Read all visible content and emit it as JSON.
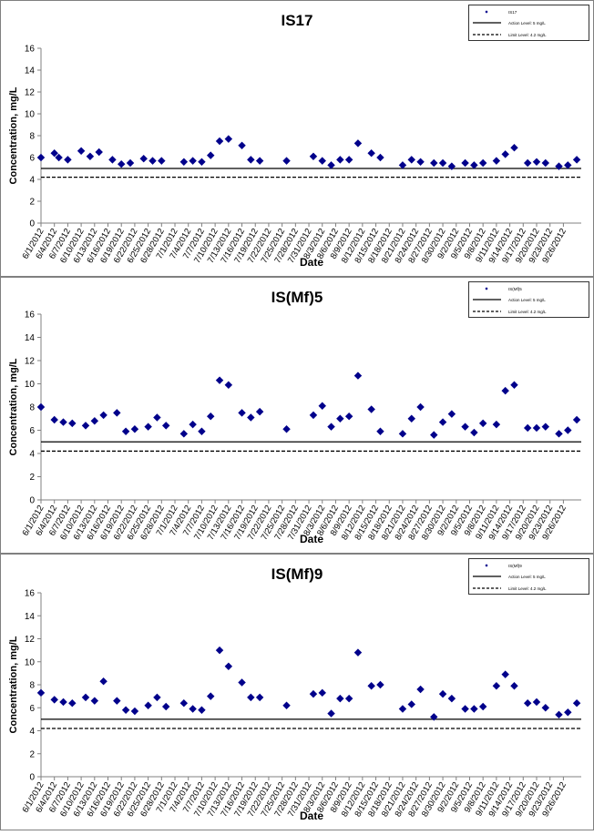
{
  "x_labels": [
    "6/1/2012",
    "6/4/2012",
    "6/7/2012",
    "6/10/2012",
    "6/13/2012",
    "6/16/2012",
    "6/19/2012",
    "6/22/2012",
    "6/25/2012",
    "6/28/2012",
    "7/1/2012",
    "7/4/2012",
    "7/7/2012",
    "7/10/2012",
    "7/13/2012",
    "7/16/2012",
    "7/19/2012",
    "7/22/2012",
    "7/25/2012",
    "7/28/2012",
    "7/31/2012",
    "8/3/2012",
    "8/6/2012",
    "8/9/2012",
    "8/12/2012",
    "8/15/2012",
    "8/18/2012",
    "8/21/2012",
    "8/24/2012",
    "8/27/2012",
    "8/30/2012",
    "9/2/2012",
    "9/5/2012",
    "9/8/2012",
    "9/11/2012",
    "9/14/2012",
    "9/17/2012",
    "9/20/2012",
    "9/23/2012",
    "9/26/2012"
  ],
  "colors": {
    "marker": "#00008B",
    "axis": "#808080",
    "line": "#000000"
  },
  "chart_data": [
    {
      "type": "scatter",
      "title": "IS17",
      "xlabel": "Date",
      "ylabel": "Concentration, mg/L",
      "ylim": [
        0,
        16
      ],
      "yticks": [
        0,
        2,
        4,
        6,
        8,
        10,
        12,
        14,
        16
      ],
      "legend_position": "top-right",
      "legend": {
        "series": "IS17",
        "action": "Action Level: 5 mg/L",
        "limit": "Limit Level: 4.2 mg/L"
      },
      "reference_lines": [
        {
          "y": 5.0,
          "style": "solid"
        },
        {
          "y": 4.2,
          "style": "dashed"
        }
      ],
      "series": [
        {
          "name": "IS17",
          "points": [
            {
              "x": "6/1/2012",
              "y": 6.0
            },
            {
              "x": "6/4/2012",
              "y": 6.4
            },
            {
              "x": "6/5/2012",
              "y": 6.0
            },
            {
              "x": "6/7/2012",
              "y": 5.8
            },
            {
              "x": "6/10/2012",
              "y": 6.6
            },
            {
              "x": "6/12/2012",
              "y": 6.1
            },
            {
              "x": "6/14/2012",
              "y": 6.5
            },
            {
              "x": "6/17/2012",
              "y": 5.8
            },
            {
              "x": "6/19/2012",
              "y": 5.4
            },
            {
              "x": "6/21/2012",
              "y": 5.5
            },
            {
              "x": "6/24/2012",
              "y": 5.9
            },
            {
              "x": "6/26/2012",
              "y": 5.7
            },
            {
              "x": "6/28/2012",
              "y": 5.7
            },
            {
              "x": "7/3/2012",
              "y": 5.6
            },
            {
              "x": "7/5/2012",
              "y": 5.7
            },
            {
              "x": "7/7/2012",
              "y": 5.6
            },
            {
              "x": "7/9/2012",
              "y": 6.2
            },
            {
              "x": "7/11/2012",
              "y": 7.5
            },
            {
              "x": "7/13/2012",
              "y": 7.7
            },
            {
              "x": "7/16/2012",
              "y": 7.1
            },
            {
              "x": "7/18/2012",
              "y": 5.8
            },
            {
              "x": "7/20/2012",
              "y": 5.7
            },
            {
              "x": "7/26/2012",
              "y": 5.7
            },
            {
              "x": "8/1/2012",
              "y": 6.1
            },
            {
              "x": "8/3/2012",
              "y": 5.7
            },
            {
              "x": "8/5/2012",
              "y": 5.3
            },
            {
              "x": "8/7/2012",
              "y": 5.8
            },
            {
              "x": "8/9/2012",
              "y": 5.8
            },
            {
              "x": "8/11/2012",
              "y": 7.3
            },
            {
              "x": "8/14/2012",
              "y": 6.4
            },
            {
              "x": "8/16/2012",
              "y": 6.0
            },
            {
              "x": "8/21/2012",
              "y": 5.3
            },
            {
              "x": "8/23/2012",
              "y": 5.8
            },
            {
              "x": "8/25/2012",
              "y": 5.6
            },
            {
              "x": "8/28/2012",
              "y": 5.5
            },
            {
              "x": "8/30/2012",
              "y": 5.5
            },
            {
              "x": "9/1/2012",
              "y": 5.2
            },
            {
              "x": "9/4/2012",
              "y": 5.5
            },
            {
              "x": "9/6/2012",
              "y": 5.3
            },
            {
              "x": "9/8/2012",
              "y": 5.5
            },
            {
              "x": "9/11/2012",
              "y": 5.7
            },
            {
              "x": "9/13/2012",
              "y": 6.3
            },
            {
              "x": "9/15/2012",
              "y": 6.9
            },
            {
              "x": "9/18/2012",
              "y": 5.5
            },
            {
              "x": "9/20/2012",
              "y": 5.6
            },
            {
              "x": "9/22/2012",
              "y": 5.5
            },
            {
              "x": "9/25/2012",
              "y": 5.2
            },
            {
              "x": "9/27/2012",
              "y": 5.3
            },
            {
              "x": "9/29/2012",
              "y": 5.8
            }
          ]
        }
      ]
    },
    {
      "type": "scatter",
      "title": "IS(Mf)5",
      "xlabel": "Date",
      "ylabel": "Concentration, mg/L",
      "ylim": [
        0,
        16
      ],
      "yticks": [
        0,
        2,
        4,
        6,
        8,
        10,
        12,
        14,
        16
      ],
      "legend_position": "top-right",
      "legend": {
        "series": "IS(Mf)5",
        "action": "Action Level: 5 mg/L",
        "limit": "Limit Level: 4.2 mg/L"
      },
      "reference_lines": [
        {
          "y": 5.0,
          "style": "solid"
        },
        {
          "y": 4.2,
          "style": "dashed"
        }
      ],
      "series": [
        {
          "name": "IS(Mf)5",
          "points": [
            {
              "x": "6/1/2012",
              "y": 8.0
            },
            {
              "x": "6/4/2012",
              "y": 6.9
            },
            {
              "x": "6/6/2012",
              "y": 6.7
            },
            {
              "x": "6/8/2012",
              "y": 6.6
            },
            {
              "x": "6/11/2012",
              "y": 6.4
            },
            {
              "x": "6/13/2012",
              "y": 6.8
            },
            {
              "x": "6/15/2012",
              "y": 7.3
            },
            {
              "x": "6/18/2012",
              "y": 7.5
            },
            {
              "x": "6/20/2012",
              "y": 5.9
            },
            {
              "x": "6/22/2012",
              "y": 6.1
            },
            {
              "x": "6/25/2012",
              "y": 6.3
            },
            {
              "x": "6/27/2012",
              "y": 7.1
            },
            {
              "x": "6/29/2012",
              "y": 6.4
            },
            {
              "x": "7/3/2012",
              "y": 5.7
            },
            {
              "x": "7/5/2012",
              "y": 6.5
            },
            {
              "x": "7/7/2012",
              "y": 5.9
            },
            {
              "x": "7/9/2012",
              "y": 7.2
            },
            {
              "x": "7/11/2012",
              "y": 10.3
            },
            {
              "x": "7/13/2012",
              "y": 9.9
            },
            {
              "x": "7/16/2012",
              "y": 7.5
            },
            {
              "x": "7/18/2012",
              "y": 7.1
            },
            {
              "x": "7/20/2012",
              "y": 7.6
            },
            {
              "x": "7/26/2012",
              "y": 6.1
            },
            {
              "x": "8/1/2012",
              "y": 7.3
            },
            {
              "x": "8/3/2012",
              "y": 8.1
            },
            {
              "x": "8/5/2012",
              "y": 6.3
            },
            {
              "x": "8/7/2012",
              "y": 7.0
            },
            {
              "x": "8/9/2012",
              "y": 7.2
            },
            {
              "x": "8/11/2012",
              "y": 10.7
            },
            {
              "x": "8/14/2012",
              "y": 7.8
            },
            {
              "x": "8/16/2012",
              "y": 5.9
            },
            {
              "x": "8/21/2012",
              "y": 5.7
            },
            {
              "x": "8/23/2012",
              "y": 7.0
            },
            {
              "x": "8/25/2012",
              "y": 8.0
            },
            {
              "x": "8/28/2012",
              "y": 5.6
            },
            {
              "x": "8/30/2012",
              "y": 6.7
            },
            {
              "x": "9/1/2012",
              "y": 7.4
            },
            {
              "x": "9/4/2012",
              "y": 6.3
            },
            {
              "x": "9/6/2012",
              "y": 5.8
            },
            {
              "x": "9/8/2012",
              "y": 6.6
            },
            {
              "x": "9/11/2012",
              "y": 6.5
            },
            {
              "x": "9/13/2012",
              "y": 9.4
            },
            {
              "x": "9/15/2012",
              "y": 9.9
            },
            {
              "x": "9/18/2012",
              "y": 6.2
            },
            {
              "x": "9/20/2012",
              "y": 6.2
            },
            {
              "x": "9/22/2012",
              "y": 6.3
            },
            {
              "x": "9/25/2012",
              "y": 5.7
            },
            {
              "x": "9/27/2012",
              "y": 6.0
            },
            {
              "x": "9/29/2012",
              "y": 6.9
            }
          ]
        }
      ]
    },
    {
      "type": "scatter",
      "title": "IS(Mf)9",
      "xlabel": "Date",
      "ylabel": "Concentration, mg/L",
      "ylim": [
        0,
        16
      ],
      "yticks": [
        0,
        2,
        4,
        6,
        8,
        10,
        12,
        14,
        16
      ],
      "legend_position": "top-right",
      "legend": {
        "series": "IS(Mf)9",
        "action": "Action Level: 5 mg/L",
        "limit": "Limit Level: 4.2 mg/L"
      },
      "reference_lines": [
        {
          "y": 5.0,
          "style": "solid"
        },
        {
          "y": 4.2,
          "style": "dashed"
        }
      ],
      "series": [
        {
          "name": "IS(Mf)9",
          "points": [
            {
              "x": "6/1/2012",
              "y": 7.3
            },
            {
              "x": "6/4/2012",
              "y": 6.7
            },
            {
              "x": "6/6/2012",
              "y": 6.5
            },
            {
              "x": "6/8/2012",
              "y": 6.4
            },
            {
              "x": "6/11/2012",
              "y": 6.9
            },
            {
              "x": "6/13/2012",
              "y": 6.6
            },
            {
              "x": "6/15/2012",
              "y": 8.3
            },
            {
              "x": "6/18/2012",
              "y": 6.6
            },
            {
              "x": "6/20/2012",
              "y": 5.8
            },
            {
              "x": "6/22/2012",
              "y": 5.7
            },
            {
              "x": "6/25/2012",
              "y": 6.2
            },
            {
              "x": "6/27/2012",
              "y": 6.9
            },
            {
              "x": "6/29/2012",
              "y": 6.1
            },
            {
              "x": "7/3/2012",
              "y": 6.4
            },
            {
              "x": "7/5/2012",
              "y": 5.9
            },
            {
              "x": "7/7/2012",
              "y": 5.8
            },
            {
              "x": "7/9/2012",
              "y": 7.0
            },
            {
              "x": "7/11/2012",
              "y": 11.0
            },
            {
              "x": "7/13/2012",
              "y": 9.6
            },
            {
              "x": "7/16/2012",
              "y": 8.2
            },
            {
              "x": "7/18/2012",
              "y": 6.9
            },
            {
              "x": "7/20/2012",
              "y": 6.9
            },
            {
              "x": "7/26/2012",
              "y": 6.2
            },
            {
              "x": "8/1/2012",
              "y": 7.2
            },
            {
              "x": "8/3/2012",
              "y": 7.3
            },
            {
              "x": "8/5/2012",
              "y": 5.5
            },
            {
              "x": "8/7/2012",
              "y": 6.8
            },
            {
              "x": "8/9/2012",
              "y": 6.8
            },
            {
              "x": "8/11/2012",
              "y": 10.8
            },
            {
              "x": "8/14/2012",
              "y": 7.9
            },
            {
              "x": "8/16/2012",
              "y": 8.0
            },
            {
              "x": "8/21/2012",
              "y": 5.9
            },
            {
              "x": "8/23/2012",
              "y": 6.3
            },
            {
              "x": "8/25/2012",
              "y": 7.6
            },
            {
              "x": "8/28/2012",
              "y": 5.2
            },
            {
              "x": "8/30/2012",
              "y": 7.2
            },
            {
              "x": "9/1/2012",
              "y": 6.8
            },
            {
              "x": "9/4/2012",
              "y": 5.9
            },
            {
              "x": "9/6/2012",
              "y": 5.9
            },
            {
              "x": "9/8/2012",
              "y": 6.1
            },
            {
              "x": "9/11/2012",
              "y": 7.9
            },
            {
              "x": "9/13/2012",
              "y": 8.9
            },
            {
              "x": "9/15/2012",
              "y": 7.9
            },
            {
              "x": "9/18/2012",
              "y": 6.4
            },
            {
              "x": "9/20/2012",
              "y": 6.5
            },
            {
              "x": "9/22/2012",
              "y": 6.0
            },
            {
              "x": "9/25/2012",
              "y": 5.4
            },
            {
              "x": "9/27/2012",
              "y": 5.6
            },
            {
              "x": "9/29/2012",
              "y": 6.4
            }
          ]
        }
      ]
    }
  ]
}
